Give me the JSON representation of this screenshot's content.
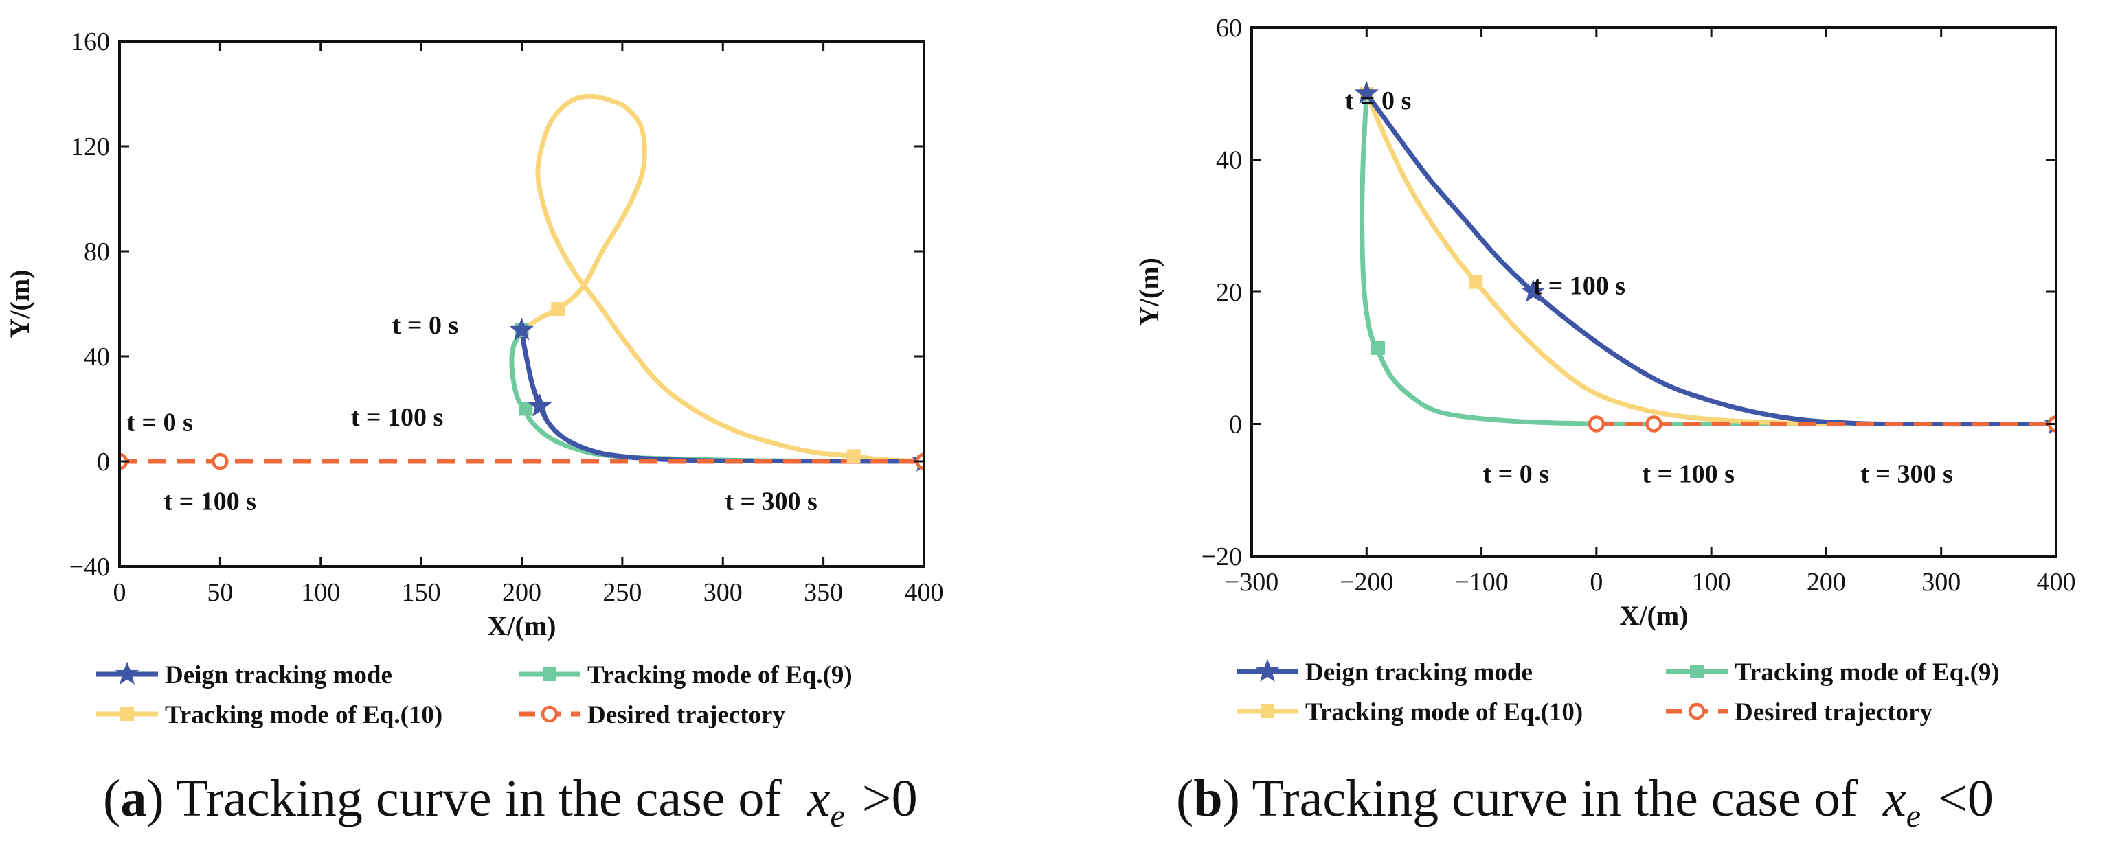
{
  "colors": {
    "design": "#3F56A6",
    "eq9": "#6FCB9F",
    "eq10": "#F9D67A",
    "desired": "#F0693A",
    "axis": "#111111"
  },
  "legend": {
    "design": "Deign tracking mode",
    "eq9": "Tracking mode of Eq.(9)",
    "eq10": "Tracking mode of Eq.(10)",
    "desired": "Desired trajectory"
  },
  "chart_data": [
    {
      "id": "a",
      "type": "line",
      "xlabel": "X/(m)",
      "ylabel": "Y/(m)",
      "xlim": [
        0,
        400
      ],
      "ylim": [
        -40,
        160
      ],
      "xticks": [
        0,
        50,
        100,
        150,
        200,
        250,
        300,
        350,
        400
      ],
      "yticks": [
        -40,
        0,
        40,
        80,
        120,
        160
      ],
      "tick_labels_x": [
        "0",
        "50",
        "100",
        "150",
        "200",
        "250",
        "300",
        "350",
        "400"
      ],
      "tick_labels_y": [
        "−40",
        "0",
        "40",
        "80",
        "120",
        "160"
      ],
      "caption": {
        "letter": "a",
        "text": "Tracking curve in the case of",
        "var": "x",
        "sub": "e",
        "rel": ">",
        "rhs": "0"
      },
      "series": [
        {
          "key": "eq10",
          "name": "Tracking mode of Eq.(10)",
          "marker": "square",
          "points": [
            [
              200,
              50
            ],
            [
              210,
              55
            ],
            [
              218,
              58
            ],
            [
              230,
              66
            ],
            [
              240,
              80
            ],
            [
              248,
              90
            ],
            [
              255,
              100
            ],
            [
              260,
              110
            ],
            [
              261,
              120
            ],
            [
              259,
              128
            ],
            [
              253,
              134
            ],
            [
              246,
              137
            ],
            [
              234,
              139
            ],
            [
              224,
              137
            ],
            [
              215,
              130
            ],
            [
              210,
              120
            ],
            [
              208,
              110
            ],
            [
              210,
              100
            ],
            [
              214,
              90
            ],
            [
              220,
              80
            ],
            [
              228,
              70
            ],
            [
              238,
              60
            ],
            [
              252,
              45
            ],
            [
              268,
              30
            ],
            [
              285,
              20
            ],
            [
              305,
              12
            ],
            [
              325,
              7
            ],
            [
              345,
              3.5
            ],
            [
              365,
              2
            ],
            [
              375,
              1
            ],
            [
              385,
              0.5
            ],
            [
              400,
              0
            ]
          ],
          "marker_points": [
            [
              200,
              50
            ],
            [
              218,
              58
            ],
            [
              365,
              2
            ],
            [
              400,
              0
            ]
          ]
        },
        {
          "key": "eq9",
          "name": "Tracking mode of Eq.(9)",
          "marker": "square",
          "points": [
            [
              200,
              50
            ],
            [
              196,
              44
            ],
            [
              195,
              38
            ],
            [
              196,
              30
            ],
            [
              198,
              24
            ],
            [
              201,
              20
            ],
            [
              205,
              15
            ],
            [
              212,
              10
            ],
            [
              222,
              6
            ],
            [
              236,
              3
            ],
            [
              255,
              1.5
            ],
            [
              275,
              1
            ],
            [
              300,
              0.5
            ],
            [
              330,
              0.2
            ],
            [
              360,
              0.1
            ],
            [
              400,
              0
            ]
          ],
          "marker_points": [
            [
              200,
              50
            ],
            [
              202,
              20
            ],
            [
              400,
              0
            ]
          ]
        },
        {
          "key": "design",
          "name": "Deign tracking mode",
          "marker": "star",
          "points": [
            [
              200,
              50
            ],
            [
              201,
              45
            ],
            [
              203,
              37
            ],
            [
              205,
              30
            ],
            [
              207,
              25
            ],
            [
              209,
              21
            ],
            [
              213,
              15
            ],
            [
              219,
              10
            ],
            [
              228,
              6
            ],
            [
              240,
              3
            ],
            [
              255,
              1.5
            ],
            [
              275,
              0.6
            ],
            [
              300,
              0.2
            ],
            [
              340,
              0.05
            ],
            [
              400,
              0
            ]
          ],
          "marker_points": [
            [
              200,
              50
            ],
            [
              209,
              21
            ],
            [
              400,
              0
            ]
          ]
        },
        {
          "key": "desired",
          "name": "Desired trajectory",
          "marker": "circle",
          "dashed": true,
          "points": [
            [
              0,
              0
            ],
            [
              400,
              0
            ]
          ],
          "marker_points": [
            [
              0,
              0
            ],
            [
              50,
              0
            ],
            [
              400,
              0
            ]
          ]
        }
      ],
      "annotations": [
        {
          "text": "t = 0 s",
          "x": 20,
          "y": 15
        },
        {
          "text": "t = 100 s",
          "x": 45,
          "y": -15
        },
        {
          "text": "t = 0 s",
          "x": 152,
          "y": 52
        },
        {
          "text": "t = 100 s",
          "x": 138,
          "y": 17
        },
        {
          "text": "t = 300 s",
          "x": 324,
          "y": -15
        }
      ]
    },
    {
      "id": "b",
      "type": "line",
      "xlabel": "X/(m)",
      "ylabel": "Y/(m)",
      "xlim": [
        -300,
        400
      ],
      "ylim": [
        -20,
        60
      ],
      "xticks": [
        -300,
        -200,
        -100,
        0,
        100,
        200,
        300,
        400
      ],
      "yticks": [
        -20,
        0,
        20,
        40,
        60
      ],
      "tick_labels_x": [
        "−300",
        "−200",
        "−100",
        "0",
        "100",
        "200",
        "300",
        "400"
      ],
      "tick_labels_y": [
        "−20",
        "0",
        "20",
        "40",
        "60"
      ],
      "caption": {
        "letter": "b",
        "text": "Tracking curve in the case of",
        "var": "x",
        "sub": "e",
        "rel": "<",
        "rhs": "0"
      },
      "series": [
        {
          "key": "eq9",
          "name": "Tracking mode of Eq.(9)",
          "marker": "square",
          "points": [
            [
              -200,
              50
            ],
            [
              -203,
              40
            ],
            [
              -204,
              30
            ],
            [
              -202,
              20
            ],
            [
              -197,
              14
            ],
            [
              -190,
              11
            ],
            [
              -178,
              7
            ],
            [
              -160,
              4
            ],
            [
              -140,
              2
            ],
            [
              -110,
              1
            ],
            [
              -70,
              0.4
            ],
            [
              -20,
              0.1
            ],
            [
              50,
              0
            ],
            [
              400,
              0
            ]
          ],
          "marker_points": [
            [
              -200,
              50
            ],
            [
              -190,
              11.5
            ],
            [
              400,
              0
            ]
          ]
        },
        {
          "key": "eq10",
          "name": "Tracking mode of Eq.(10)",
          "marker": "square",
          "points": [
            [
              -200,
              50
            ],
            [
              -180,
              42
            ],
            [
              -160,
              35
            ],
            [
              -130,
              27
            ],
            [
              -105,
              21.5
            ],
            [
              -70,
              14.5
            ],
            [
              -40,
              9.5
            ],
            [
              -10,
              5.5
            ],
            [
              20,
              3.2
            ],
            [
              60,
              1.5
            ],
            [
              100,
              0.7
            ],
            [
              140,
              0.3
            ],
            [
              180,
              0.1
            ],
            [
              250,
              0
            ],
            [
              400,
              0
            ]
          ],
          "marker_points": [
            [
              -200,
              50
            ],
            [
              -105,
              21.5
            ],
            [
              400,
              0
            ]
          ]
        },
        {
          "key": "design",
          "name": "Deign tracking mode",
          "marker": "star",
          "points": [
            [
              -200,
              50
            ],
            [
              -175,
              44
            ],
            [
              -145,
              37
            ],
            [
              -115,
              31
            ],
            [
              -85,
              25
            ],
            [
              -55,
              20
            ],
            [
              -20,
              15
            ],
            [
              20,
              10
            ],
            [
              60,
              6
            ],
            [
              100,
              3.5
            ],
            [
              140,
              1.7
            ],
            [
              180,
              0.6
            ],
            [
              220,
              0.15
            ],
            [
              260,
              0
            ],
            [
              400,
              0
            ]
          ],
          "marker_points": [
            [
              -200,
              50
            ],
            [
              -55,
              20
            ],
            [
              400,
              0
            ]
          ]
        },
        {
          "key": "desired",
          "name": "Desired trajectory",
          "marker": "circle",
          "dashed": true,
          "points": [
            [
              0,
              0
            ],
            [
              400,
              0
            ]
          ],
          "marker_points": [
            [
              0,
              0
            ],
            [
              50,
              0
            ],
            [
              400,
              0
            ]
          ]
        }
      ],
      "annotations": [
        {
          "text": "t = 0 s",
          "x": -190,
          "y": 49
        },
        {
          "text": "t = 100 s",
          "x": -15,
          "y": 21
        },
        {
          "text": "t = 0 s",
          "x": -70,
          "y": -7.5
        },
        {
          "text": "t = 100 s",
          "x": 80,
          "y": -7.5
        },
        {
          "text": "t = 300 s",
          "x": 270,
          "y": -7.5
        }
      ]
    }
  ]
}
